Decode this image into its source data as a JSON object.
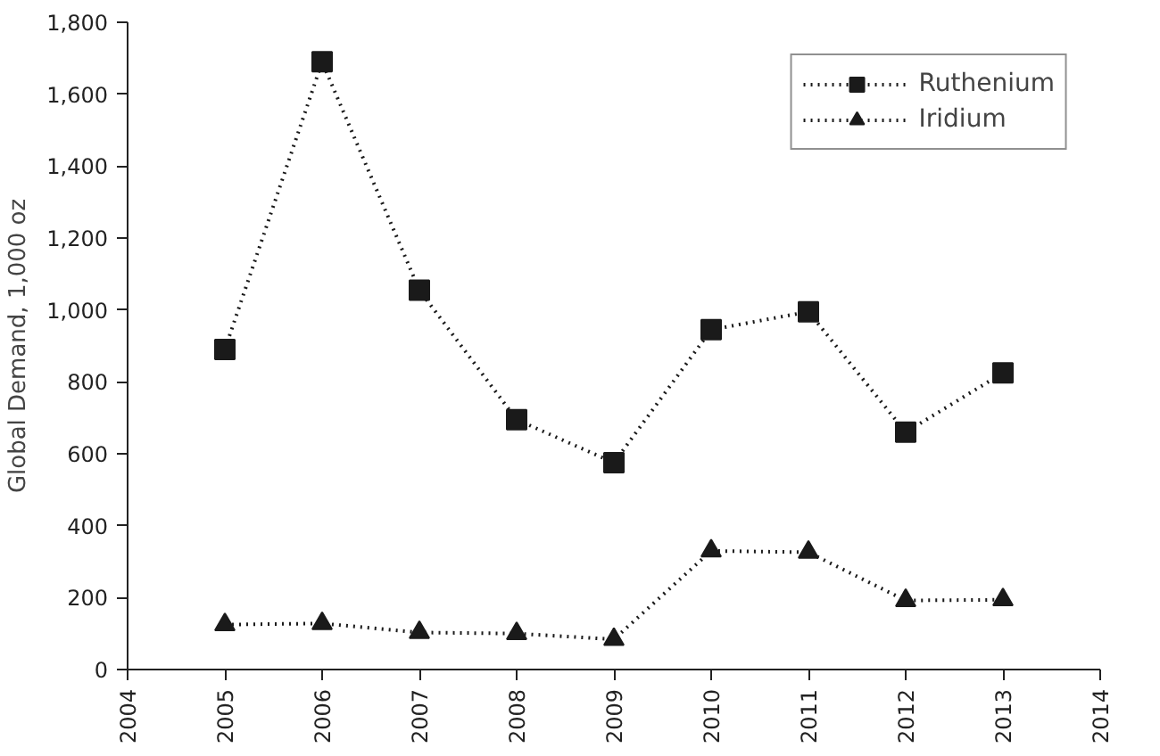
{
  "chart_data": {
    "type": "line",
    "ylabel": "Global Demand, 1,000 oz",
    "x": [
      2005,
      2006,
      2007,
      2008,
      2009,
      2010,
      2011,
      2012,
      2013
    ],
    "series": [
      {
        "name": "Ruthenium",
        "color": "#1a1a1a",
        "marker": "square",
        "values": [
          890,
          1690,
          1055,
          695,
          575,
          945,
          995,
          660,
          825
        ]
      },
      {
        "name": "Iridium",
        "color": "#1a1a1a",
        "marker": "triangle",
        "values": [
          125,
          128,
          103,
          100,
          84,
          330,
          326,
          192,
          194
        ]
      }
    ],
    "xlim": [
      2004,
      2014
    ],
    "xticks": [
      2004,
      2005,
      2006,
      2007,
      2008,
      2009,
      2010,
      2011,
      2012,
      2013,
      2014
    ],
    "ylim": [
      0,
      1800
    ],
    "yticks": [
      {
        "value": 0,
        "label": "0"
      },
      {
        "value": 200,
        "label": "200"
      },
      {
        "value": 400,
        "label": "400"
      },
      {
        "value": 600,
        "label": "600"
      },
      {
        "value": 800,
        "label": "800"
      },
      {
        "value": 1000,
        "label": "1,000"
      },
      {
        "value": 1200,
        "label": "1,200"
      },
      {
        "value": 1400,
        "label": "1,400"
      },
      {
        "value": 1600,
        "label": "1,600"
      },
      {
        "value": 1800,
        "label": "1,800"
      }
    ],
    "grid": false,
    "legend": "top right",
    "line_style": "dotted"
  }
}
